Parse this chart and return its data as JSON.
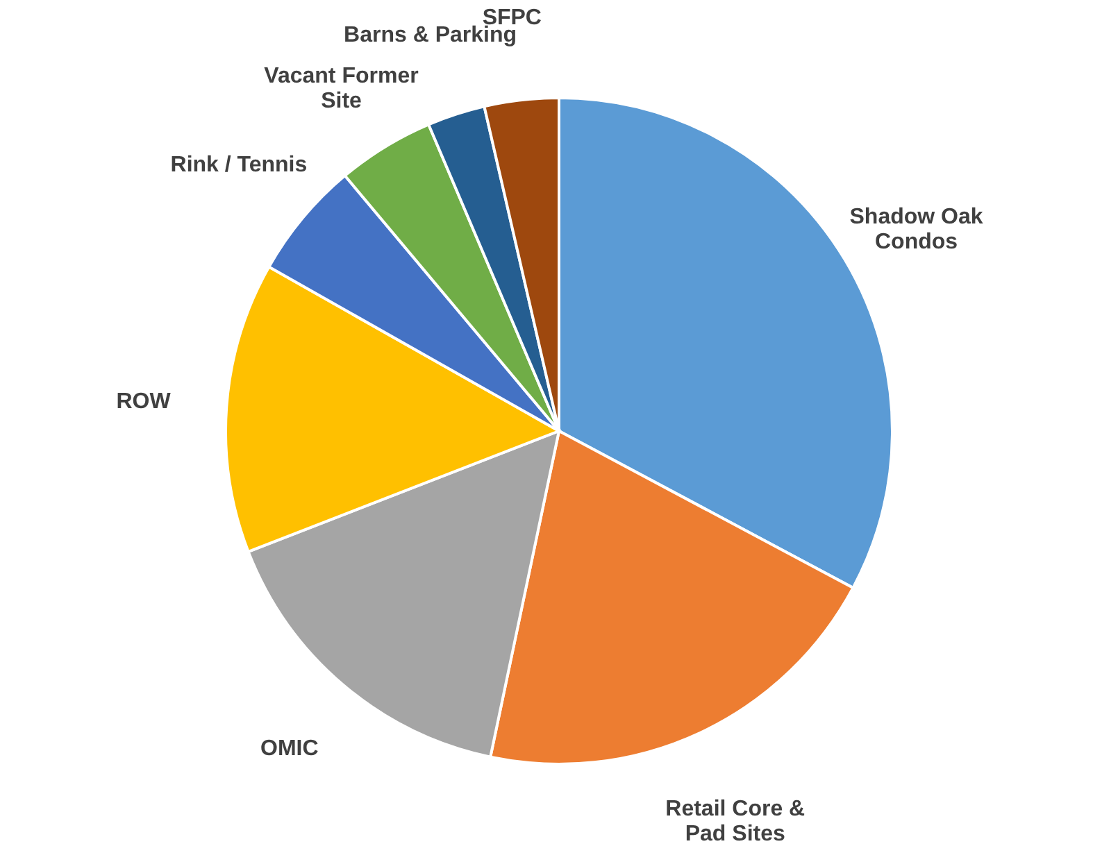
{
  "chart_data": {
    "type": "pie",
    "categories": [
      "Shadow Oak Condos",
      "Retail Core & Pad Sites",
      "OMIC",
      "ROW",
      "Rink / Tennis",
      "Vacant Former Site",
      "Barns & Parking",
      "SFPC"
    ],
    "values": [
      32.8,
      20.5,
      15.8,
      14.1,
      5.7,
      4.7,
      2.8,
      3.6
    ],
    "colors": [
      "#5b9bd5",
      "#ed7d31",
      "#a5a5a5",
      "#ffc000",
      "#4472c4",
      "#70ad47",
      "#255e91",
      "#9e480e"
    ]
  }
}
